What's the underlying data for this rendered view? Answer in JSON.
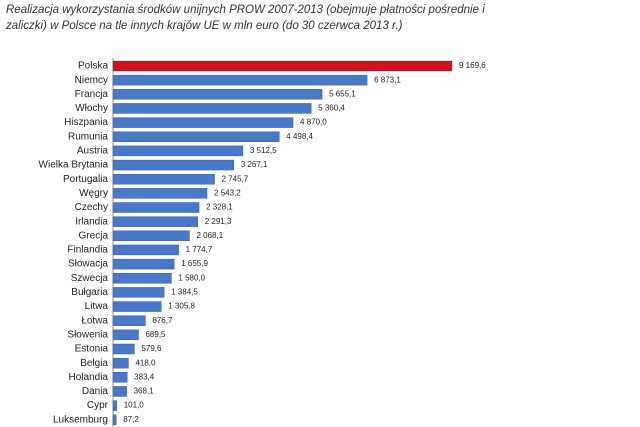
{
  "chart_data": {
    "type": "barh",
    "title": "Realizacja wykorzystania środków unijnych PROW 2007-2013 (obejmuje płatności pośrednie i zaliczki) w Polsce na tle innych krajów UE w mln euro (do 30 czerwca 2013 r.)",
    "categories": [
      "Polska",
      "Niemcy",
      "Francja",
      "Włochy",
      "Hiszpania",
      "Rumunia",
      "Austria",
      "Wielka Brytania",
      "Portugalia",
      "Węgry",
      "Czechy",
      "Irlandia",
      "Grecja",
      "Finlandia",
      "Słowacja",
      "Szwecja",
      "Bułgaria",
      "Litwa",
      "Łotwa",
      "Słowenia",
      "Estonia",
      "Belgia",
      "Holandia",
      "Dania",
      "Cypr",
      "Luksemburg"
    ],
    "values": [
      9169.6,
      6873.1,
      5655.1,
      5360.4,
      4870.0,
      4498.4,
      3512.5,
      3267.1,
      2745.7,
      2543.2,
      2328.1,
      2291.3,
      2068.1,
      1774.7,
      1655.9,
      1580.0,
      1384.5,
      1305.8,
      876.7,
      689.5,
      579.6,
      418.0,
      383.4,
      368.1,
      101.0,
      87.2
    ],
    "value_labels": [
      "9 169,6",
      "6 873,1",
      "5 655,1",
      "5 360,4",
      "4 870,0",
      "4 498,4",
      "3 512,5",
      "3 267,1",
      "2 745,7",
      "2 543,2",
      "2 328,1",
      "2 291,3",
      "2 068,1",
      "1 774,7",
      "1 655,9",
      "1 580,0",
      "1 384,5",
      "1 305,8",
      "876,7",
      "689,5",
      "579,6",
      "418,0",
      "383,4",
      "368,1",
      "101,0",
      "87,2"
    ],
    "colors": [
      "#d0121b",
      "#4a78c8",
      "#4a78c8",
      "#4a78c8",
      "#4a78c8",
      "#4a78c8",
      "#4a78c8",
      "#4a78c8",
      "#4a78c8",
      "#4a78c8",
      "#4a78c8",
      "#4a78c8",
      "#4a78c8",
      "#4a78c8",
      "#4a78c8",
      "#4a78c8",
      "#4a78c8",
      "#4a78c8",
      "#4a78c8",
      "#4a78c8",
      "#4a78c8",
      "#4a78c8",
      "#4a78c8",
      "#4a78c8",
      "#4a78c8",
      "#4a78c8"
    ]
  }
}
